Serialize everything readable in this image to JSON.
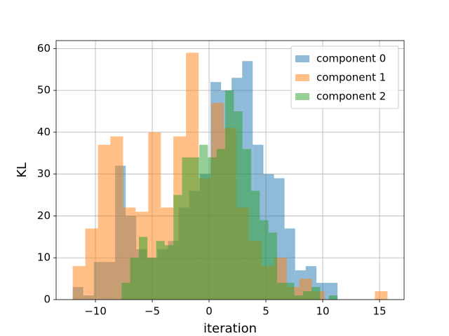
{
  "chart_data": {
    "type": "histogram",
    "xlabel": "iteration",
    "ylabel": "KL",
    "xlim": [
      -13.46,
      17.16
    ],
    "ylim": [
      0,
      61.9
    ],
    "xticks": [
      {
        "value": -10,
        "label": "−10"
      },
      {
        "value": -5,
        "label": "−5"
      },
      0,
      5,
      10,
      15
    ],
    "yticks": [
      0,
      10,
      20,
      30,
      40,
      50,
      60
    ],
    "grid": true,
    "legend": "upper right",
    "alpha": 0.5,
    "series": [
      {
        "name": "component 0",
        "color": "#1f77b4",
        "bins": [
          -12.0,
          -11.07,
          -10.14,
          -9.2,
          -8.27,
          -7.34,
          -6.41,
          -5.48,
          -4.54,
          -3.61,
          -2.68,
          -1.75,
          -0.82,
          0.12,
          1.05,
          1.98,
          2.91,
          3.84,
          4.78,
          5.71,
          6.64,
          7.57,
          8.5,
          9.44,
          10.37,
          11.3
        ],
        "values": [
          3,
          1,
          9,
          9,
          32,
          20,
          12,
          10,
          12,
          14,
          22,
          26,
          30,
          52,
          50,
          53,
          57,
          37,
          30,
          29,
          17,
          7,
          8,
          4,
          4
        ]
      },
      {
        "name": "component 1",
        "color": "#ff7f0e",
        "bins": [
          -12.0,
          -10.89,
          -9.78,
          -8.68,
          -7.57,
          -6.46,
          -5.35,
          -4.24,
          -3.14,
          -2.03,
          -0.92,
          0.19,
          1.3,
          2.4,
          3.51,
          4.62,
          5.73,
          6.84,
          7.94,
          9.05,
          10.16,
          11.27,
          12.38,
          13.48,
          14.59,
          15.7
        ],
        "values": [
          8,
          17,
          37,
          39,
          22,
          21,
          40,
          22,
          39,
          59,
          29,
          47,
          41,
          22,
          14,
          8,
          10,
          3,
          5,
          2,
          0,
          0,
          0,
          0,
          2
        ]
      },
      {
        "name": "component 2",
        "color": "#2ca02c",
        "bins": [
          -7.7,
          -6.94,
          -6.18,
          -5.42,
          -4.66,
          -3.9,
          -3.14,
          -2.38,
          -1.62,
          -0.86,
          -0.1,
          0.66,
          1.42,
          2.18,
          2.94,
          3.7,
          4.46,
          5.22,
          5.98,
          6.74,
          7.5,
          8.26,
          9.02,
          9.78,
          10.54,
          11.3
        ],
        "values": [
          4,
          10,
          15,
          10,
          14,
          13,
          25,
          34,
          34,
          37,
          34,
          36,
          50,
          45,
          36,
          26,
          19,
          16,
          4,
          4,
          1,
          2,
          3,
          0,
          1
        ]
      }
    ]
  }
}
